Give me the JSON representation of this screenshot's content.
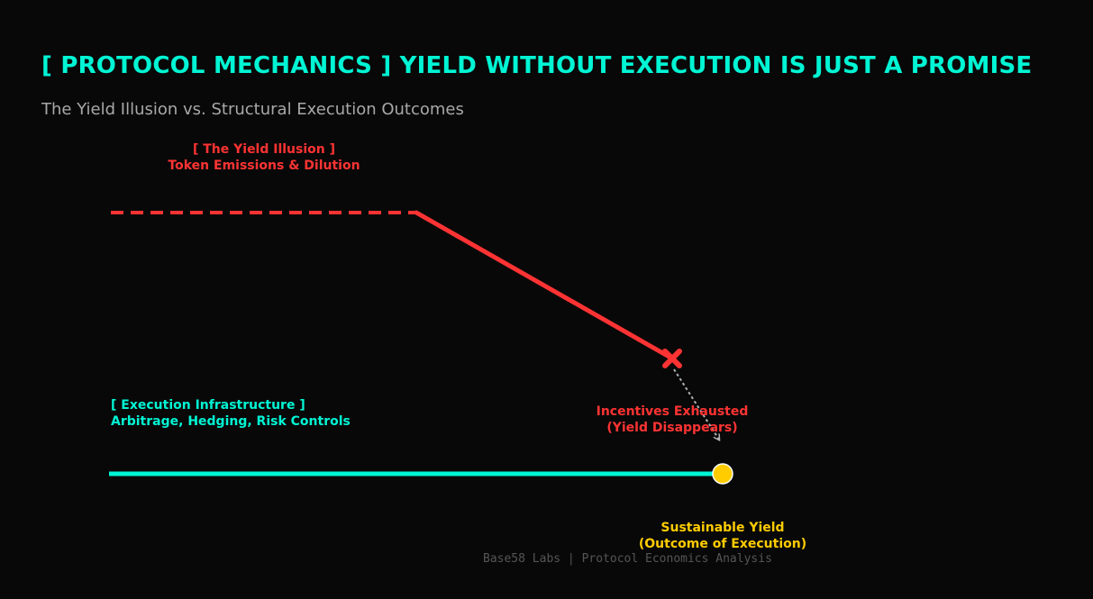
{
  "title": "[ PROTOCOL MECHANICS ] YIELD WITHOUT EXECUTION IS JUST A PROMISE",
  "subtitle": "The Yield Illusion vs. Structural Execution Outcomes",
  "colors": {
    "background": "#080808",
    "accent": "#00f5d4",
    "illusion": "#ff3333",
    "sustainable": "#ffcc00",
    "muted": "#a8a8a8"
  },
  "illusion_path": {
    "heading": "[ The Yield Illusion ]",
    "subheading": "Token Emissions & Dilution"
  },
  "execution_path": {
    "heading": "[ Execution Infrastructure ]",
    "subheading": "Arbitrage, Hedging, Risk Controls"
  },
  "exhausted_marker": {
    "icon": "x-marker-icon",
    "line1": "Incentives Exhausted",
    "line2": "(Yield Disappears)"
  },
  "sustainable_marker": {
    "icon": "circle-marker-icon",
    "line1": "Sustainable Yield",
    "line2": "(Outcome of Execution)"
  },
  "footer": "Base58 Labs | Protocol Economics Analysis"
}
